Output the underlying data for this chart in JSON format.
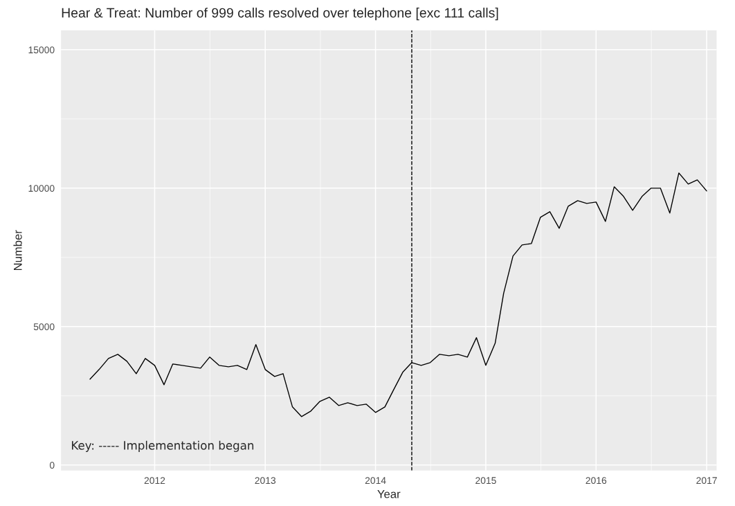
{
  "chart_data": {
    "type": "line",
    "title": "Hear & Treat: Number of 999 calls resolved over telephone [exc 111 calls]",
    "xlabel": "Year",
    "ylabel": "Number",
    "x": [
      "2011-06",
      "2011-07",
      "2011-08",
      "2011-09",
      "2011-10",
      "2011-11",
      "2011-12",
      "2012-01",
      "2012-02",
      "2012-03",
      "2012-04",
      "2012-05",
      "2012-06",
      "2012-07",
      "2012-08",
      "2012-09",
      "2012-10",
      "2012-11",
      "2012-12",
      "2013-01",
      "2013-02",
      "2013-03",
      "2013-04",
      "2013-05",
      "2013-06",
      "2013-07",
      "2013-08",
      "2013-09",
      "2013-10",
      "2013-11",
      "2013-12",
      "2014-01",
      "2014-02",
      "2014-03",
      "2014-04",
      "2014-05",
      "2014-06",
      "2014-07",
      "2014-08",
      "2014-09",
      "2014-10",
      "2014-11",
      "2014-12",
      "2015-01",
      "2015-02",
      "2015-03",
      "2015-04",
      "2015-05",
      "2015-06",
      "2015-07",
      "2015-08",
      "2015-09",
      "2015-10",
      "2015-11",
      "2015-12",
      "2016-01",
      "2016-02",
      "2016-03",
      "2016-04",
      "2016-05",
      "2016-06",
      "2016-07",
      "2016-08",
      "2016-09",
      "2016-10",
      "2016-11",
      "2016-12",
      "2017-01"
    ],
    "series": [
      {
        "color": "#000000",
        "values": [
          3100,
          3450,
          3850,
          4000,
          3750,
          3300,
          3850,
          3600,
          2900,
          3650,
          3600,
          3550,
          3500,
          3900,
          3600,
          3550,
          3600,
          3450,
          4350,
          3450,
          3200,
          3300,
          2100,
          1750,
          1950,
          2300,
          2450,
          2150,
          2250,
          2150,
          2200,
          1900,
          2100,
          2700,
          3350,
          3700,
          3600,
          3700,
          4000,
          3950,
          4000,
          3900,
          4600,
          3600,
          4400,
          6200,
          7550,
          7950,
          8000,
          8950,
          9150,
          8550,
          9350,
          9550,
          9450,
          9500,
          8800,
          10050,
          9700,
          9200,
          9700,
          10000,
          10000,
          9100,
          10550,
          10150,
          10300,
          9900
        ]
      }
    ],
    "xlim": [
      "2011-02-25",
      "2017-02-03"
    ],
    "xticks": [
      "2012",
      "2013",
      "2014",
      "2015",
      "2016",
      "2017"
    ],
    "ylim": [
      -200,
      15700
    ],
    "yticks": [
      0,
      5000,
      10000,
      15000
    ],
    "ref_lines": [
      {
        "axis": "x",
        "value": "2014-05",
        "color": "#000000",
        "line_style": "dashed"
      }
    ],
    "annotations": [
      "Key: ----- Implementation began"
    ],
    "grid": true,
    "line_style": "solid"
  }
}
